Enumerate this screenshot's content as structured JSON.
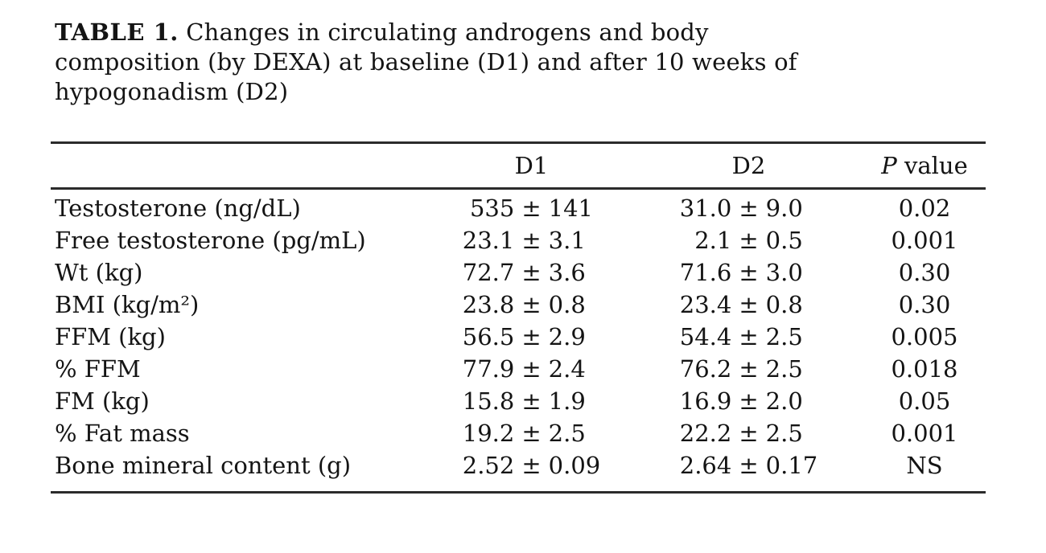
{
  "title": {
    "label": "TABLE 1.",
    "line1": "Changes in circulating androgens and body",
    "line2": "composition (by DEXA) at baseline (D1) and after 10 weeks of",
    "line3": "hypogonadism (D2)"
  },
  "table": {
    "pm": "±",
    "columns": {
      "metric": "",
      "d1": "D1",
      "d2": "D2",
      "p_italic": "P",
      "p_rest": " value"
    },
    "rows": [
      {
        "label": "Testosterone (ng/dL)",
        "d1m": "535",
        "d1s": "141",
        "d2m": "31.0",
        "d2s": "9.0",
        "p": "0.02"
      },
      {
        "label": "Free testosterone (pg/mL)",
        "d1m": "23.1",
        "d1s": "3.1",
        "d2m": "2.1",
        "d2s": "0.5",
        "p": "0.001"
      },
      {
        "label": "Wt (kg)",
        "d1m": "72.7",
        "d1s": "3.6",
        "d2m": "71.6",
        "d2s": "3.0",
        "p": "0.30"
      },
      {
        "label": "BMI (kg/m²)",
        "d1m": "23.8",
        "d1s": "0.8",
        "d2m": "23.4",
        "d2s": "0.8",
        "p": "0.30"
      },
      {
        "label": "FFM (kg)",
        "d1m": "56.5",
        "d1s": "2.9",
        "d2m": "54.4",
        "d2s": "2.5",
        "p": "0.005"
      },
      {
        "label": "% FFM",
        "d1m": "77.9",
        "d1s": "2.4",
        "d2m": "76.2",
        "d2s": "2.5",
        "p": "0.018"
      },
      {
        "label": "FM (kg)",
        "d1m": "15.8",
        "d1s": "1.9",
        "d2m": "16.9",
        "d2s": "2.0",
        "p": "0.05"
      },
      {
        "label": "% Fat mass",
        "d1m": "19.2",
        "d1s": "2.5",
        "d2m": "22.2",
        "d2s": "2.5",
        "p": "0.001"
      },
      {
        "label": "Bone mineral content (g)",
        "d1m": "2.52",
        "d1s": "0.09",
        "d2m": "2.64",
        "d2s": "0.17",
        "p": "NS"
      }
    ]
  },
  "colors": {
    "background": "#ffffff",
    "text": "#141414",
    "rule": "#2b2b2b"
  }
}
